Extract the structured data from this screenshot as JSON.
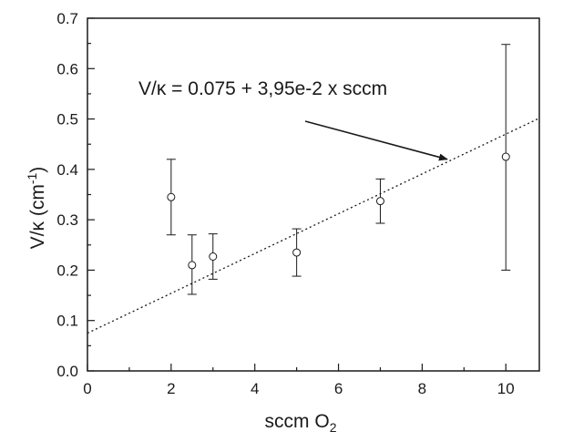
{
  "chart_data": {
    "type": "scatter",
    "xlabel": "sccm O",
    "xlabel_sub": "2",
    "ylabel": "V/κ (cm",
    "ylabel_sup": "-1",
    "ylabel_end": ")",
    "xlim": [
      0,
      10.8
    ],
    "ylim": [
      0.0,
      0.7
    ],
    "x_ticks": [
      "0",
      "2",
      "4",
      "6",
      "8",
      "10"
    ],
    "y_ticks": [
      "0.0",
      "0.1",
      "0.2",
      "0.3",
      "0.4",
      "0.5",
      "0.6",
      "0.7"
    ],
    "grid": false,
    "series": [
      {
        "marker": "open-circle",
        "points": [
          {
            "x": 2.0,
            "y": 0.345,
            "err_low": 0.27,
            "err_high": 0.42
          },
          {
            "x": 2.5,
            "y": 0.21,
            "err_low": 0.152,
            "err_high": 0.27
          },
          {
            "x": 3.0,
            "y": 0.227,
            "err_low": 0.182,
            "err_high": 0.272
          },
          {
            "x": 5.0,
            "y": 0.235,
            "err_low": 0.188,
            "err_high": 0.282
          },
          {
            "x": 7.0,
            "y": 0.337,
            "err_low": 0.293,
            "err_high": 0.381
          },
          {
            "x": 10.0,
            "y": 0.425,
            "err_low": 0.2,
            "err_high": 0.648
          }
        ]
      }
    ],
    "fit_line": {
      "intercept": 0.075,
      "slope": 0.0395,
      "style": "dotted",
      "x_range": [
        0,
        10.8
      ]
    },
    "annotation": {
      "text": "V/κ = 0.075 + 3,95e-2 x sccm",
      "arrow_to": {
        "x": 8.6,
        "y": 0.42
      }
    }
  }
}
